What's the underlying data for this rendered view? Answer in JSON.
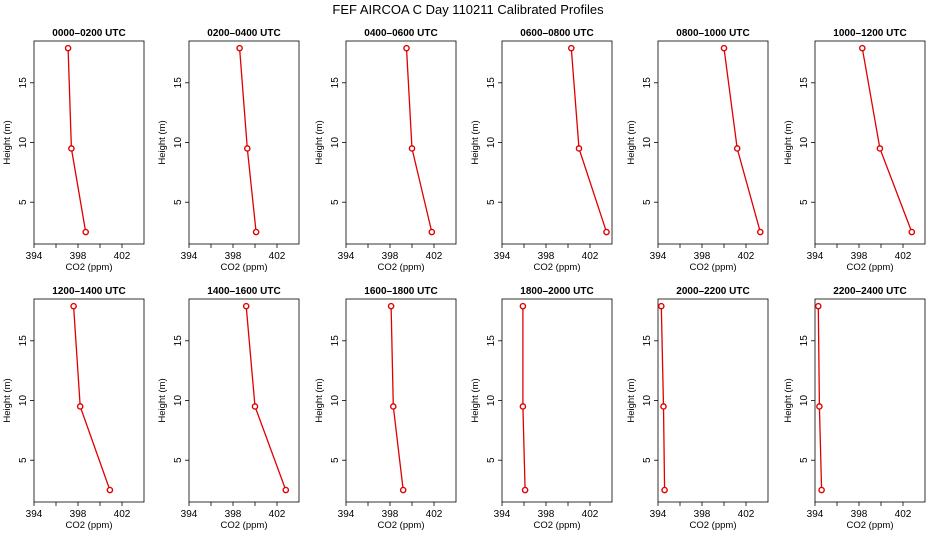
{
  "figure": {
    "title": "FEF AIRCOA C  Day 110211  Calibrated Profiles"
  },
  "chart_data": [
    {
      "type": "line",
      "title": "0000–0200 UTC",
      "xlabel": "CO2 (ppm)",
      "ylabel": "Height (m)",
      "xlim": [
        394,
        404
      ],
      "ylim": [
        1.5,
        18.5
      ],
      "xticks": [
        394,
        398,
        402
      ],
      "yticks": [
        5,
        10,
        15
      ],
      "series": [
        {
          "x": [
            398.7,
            397.4,
            397.1
          ],
          "y": [
            2.5,
            9.5,
            17.9
          ]
        }
      ],
      "color": "#e00000"
    },
    {
      "type": "line",
      "title": "0200–0400 UTC",
      "xlabel": "CO2 (ppm)",
      "ylabel": "Height (m)",
      "xlim": [
        394,
        404
      ],
      "ylim": [
        1.5,
        18.5
      ],
      "xticks": [
        394,
        398,
        402
      ],
      "yticks": [
        5,
        10,
        15
      ],
      "series": [
        {
          "x": [
            400.1,
            399.3,
            398.6
          ],
          "y": [
            2.5,
            9.5,
            17.9
          ]
        }
      ],
      "color": "#e00000"
    },
    {
      "type": "line",
      "title": "0400–0600 UTC",
      "xlabel": "CO2 (ppm)",
      "ylabel": "Height (m)",
      "xlim": [
        394,
        404
      ],
      "ylim": [
        1.5,
        18.5
      ],
      "xticks": [
        394,
        398,
        402
      ],
      "yticks": [
        5,
        10,
        15
      ],
      "series": [
        {
          "x": [
            401.8,
            400.0,
            399.5
          ],
          "y": [
            2.5,
            9.5,
            17.9
          ]
        }
      ],
      "color": "#e00000"
    },
    {
      "type": "line",
      "title": "0600–0800 UTC",
      "xlabel": "CO2 (ppm)",
      "ylabel": "Height (m)",
      "xlim": [
        394,
        404
      ],
      "ylim": [
        1.5,
        18.5
      ],
      "xticks": [
        394,
        398,
        402
      ],
      "yticks": [
        5,
        10,
        15
      ],
      "series": [
        {
          "x": [
            403.5,
            401.0,
            400.3
          ],
          "y": [
            2.5,
            9.5,
            17.9
          ]
        }
      ],
      "color": "#e00000"
    },
    {
      "type": "line",
      "title": "0800–1000 UTC",
      "xlabel": "CO2 (ppm)",
      "ylabel": "Height (m)",
      "xlim": [
        394,
        404
      ],
      "ylim": [
        1.5,
        18.5
      ],
      "xticks": [
        394,
        398,
        402
      ],
      "yticks": [
        5,
        10,
        15
      ],
      "series": [
        {
          "x": [
            403.3,
            401.2,
            400.0
          ],
          "y": [
            2.5,
            9.5,
            17.9
          ]
        }
      ],
      "color": "#e00000"
    },
    {
      "type": "line",
      "title": "1000–1200 UTC",
      "xlabel": "CO2 (ppm)",
      "ylabel": "Height (m)",
      "xlim": [
        394,
        404
      ],
      "ylim": [
        1.5,
        18.5
      ],
      "xticks": [
        394,
        398,
        402
      ],
      "yticks": [
        5,
        10,
        15
      ],
      "series": [
        {
          "x": [
            402.8,
            399.9,
            398.3
          ],
          "y": [
            2.5,
            9.5,
            17.9
          ]
        }
      ],
      "color": "#e00000"
    },
    {
      "type": "line",
      "title": "1200–1400 UTC",
      "xlabel": "CO2 (ppm)",
      "ylabel": "Height (m)",
      "xlim": [
        394,
        404
      ],
      "ylim": [
        1.5,
        18.5
      ],
      "xticks": [
        394,
        398,
        402
      ],
      "yticks": [
        5,
        10,
        15
      ],
      "series": [
        {
          "x": [
            400.9,
            398.2,
            397.6
          ],
          "y": [
            2.5,
            9.5,
            17.9
          ]
        }
      ],
      "color": "#e00000"
    },
    {
      "type": "line",
      "title": "1400–1600 UTC",
      "xlabel": "CO2 (ppm)",
      "ylabel": "Height (m)",
      "xlim": [
        394,
        404
      ],
      "ylim": [
        1.5,
        18.5
      ],
      "xticks": [
        394,
        398,
        402
      ],
      "yticks": [
        5,
        10,
        15
      ],
      "series": [
        {
          "x": [
            402.8,
            400.0,
            399.2
          ],
          "y": [
            2.5,
            9.5,
            17.9
          ]
        }
      ],
      "color": "#e00000"
    },
    {
      "type": "line",
      "title": "1600–1800 UTC",
      "xlabel": "CO2 (ppm)",
      "ylabel": "Height (m)",
      "xlim": [
        394,
        404
      ],
      "ylim": [
        1.5,
        18.5
      ],
      "xticks": [
        394,
        398,
        402
      ],
      "yticks": [
        5,
        10,
        15
      ],
      "series": [
        {
          "x": [
            399.2,
            398.3,
            398.1
          ],
          "y": [
            2.5,
            9.5,
            17.9
          ]
        }
      ],
      "color": "#e00000"
    },
    {
      "type": "line",
      "title": "1800–2000 UTC",
      "xlabel": "CO2 (ppm)",
      "ylabel": "Height (m)",
      "xlim": [
        394,
        404
      ],
      "ylim": [
        1.5,
        18.5
      ],
      "xticks": [
        394,
        398,
        402
      ],
      "yticks": [
        5,
        10,
        15
      ],
      "series": [
        {
          "x": [
            396.1,
            395.9,
            395.9
          ],
          "y": [
            2.5,
            9.5,
            17.9
          ]
        }
      ],
      "color": "#e00000"
    },
    {
      "type": "line",
      "title": "2000–2200 UTC",
      "xlabel": "CO2 (ppm)",
      "ylabel": "Height (m)",
      "xlim": [
        394,
        404
      ],
      "ylim": [
        1.5,
        18.5
      ],
      "xticks": [
        394,
        398,
        402
      ],
      "yticks": [
        5,
        10,
        15
      ],
      "series": [
        {
          "x": [
            394.6,
            394.5,
            394.3
          ],
          "y": [
            2.5,
            9.5,
            17.9
          ]
        }
      ],
      "color": "#e00000"
    },
    {
      "type": "line",
      "title": "2200–2400 UTC",
      "xlabel": "CO2 (ppm)",
      "ylabel": "Height (m)",
      "xlim": [
        394,
        404
      ],
      "ylim": [
        1.5,
        18.5
      ],
      "xticks": [
        394,
        398,
        402
      ],
      "yticks": [
        5,
        10,
        15
      ],
      "series": [
        {
          "x": [
            394.6,
            394.4,
            394.3
          ],
          "y": [
            2.5,
            9.5,
            17.9
          ]
        }
      ],
      "color": "#e00000"
    }
  ]
}
